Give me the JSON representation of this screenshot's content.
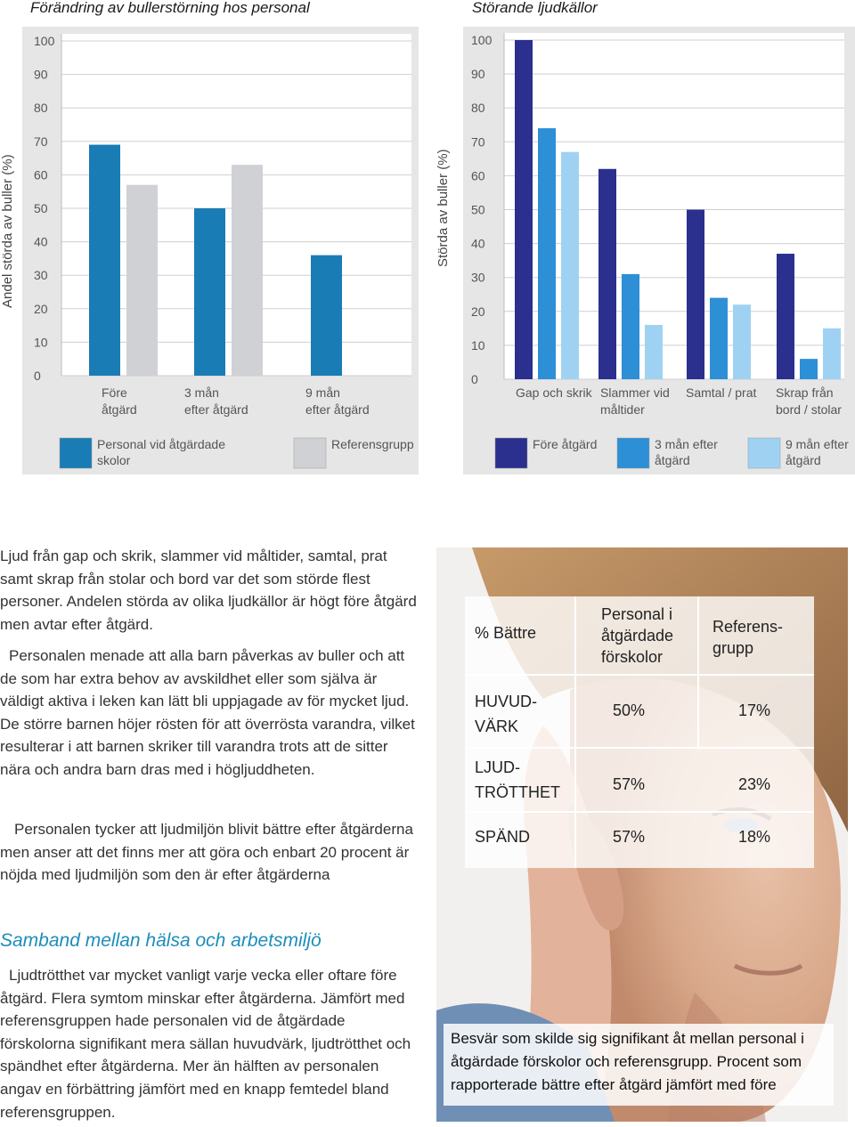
{
  "charts": {
    "left_title": "Förändring av bullerstörning hos personal",
    "right_title": "Störande ljudkällor",
    "left_ylabel": "Andel störda av buller (%)",
    "right_ylabel": "Störda av buller (%)"
  },
  "chart_data": [
    {
      "type": "bar",
      "title": "Förändring av bullerstörning hos personal",
      "ylabel": "Andel störda av buller (%)",
      "ylim": [
        0,
        100
      ],
      "yticks": [
        "0",
        "10",
        "20",
        "30",
        "40",
        "50",
        "60",
        "70",
        "80",
        "90",
        "100"
      ],
      "categories": [
        [
          "Före",
          "åtgärd"
        ],
        [
          "3 mån",
          "efter åtgärd"
        ],
        [
          "9 mån",
          "efter åtgärd"
        ]
      ],
      "series": [
        {
          "name": "Personal vid åtgärdade skolor",
          "legend_lines": [
            "Personal vid åtgärdade",
            "skolor"
          ],
          "color": "#1a7cb5",
          "values": [
            69,
            50,
            36
          ]
        },
        {
          "name": "Referensgrupp",
          "legend_lines": [
            "Referensgrupp"
          ],
          "color": "#cfd1d4",
          "values": [
            57,
            63,
            null
          ]
        }
      ],
      "grid": true,
      "legend_position": "bottom"
    },
    {
      "type": "bar",
      "title": "Störande ljudkällor",
      "ylabel": "Störda av buller (%)",
      "ylim": [
        0,
        100
      ],
      "yticks": [
        "0",
        "10",
        "20",
        "30",
        "40",
        "50",
        "60",
        "70",
        "80",
        "90",
        "100"
      ],
      "categories": [
        [
          "Gap och skrik"
        ],
        [
          "Slammer vid",
          "måltider"
        ],
        [
          "Samtal / prat"
        ],
        [
          "Skrap från",
          "bord / stolar"
        ]
      ],
      "series": [
        {
          "name": "Före åtgärd",
          "legend_lines": [
            "Före åtgärd"
          ],
          "color": "#2b2f8e",
          "values": [
            100,
            62,
            50,
            37
          ]
        },
        {
          "name": "3 mån efter åtgärd",
          "legend_lines": [
            "3 mån efter",
            "åtgärd"
          ],
          "color": "#2d8fd6",
          "values": [
            74,
            31,
            24,
            6
          ]
        },
        {
          "name": "9 mån efter åtgärd",
          "legend_lines": [
            "9 mån efter",
            "åtgärd"
          ],
          "color": "#9fd2f2",
          "values": [
            67,
            16,
            22,
            15
          ]
        }
      ],
      "grid": true,
      "legend_position": "bottom"
    }
  ],
  "body": {
    "p1": "Ljud från gap och skrik, slammer vid måltider, samtal, prat samt skrap från stolar och bord var det som störde flest personer. Andelen störda av olika ljudkällor är högt före åtgärd men avtar efter åtgärd.",
    "p2": "Personalen menade att alla barn påverkas av buller och att de som har extra behov av avskildhet eller som själva är väldigt aktiva i leken kan lätt bli uppjagade av för mycket ljud. De större barnen höjer rösten för att överrösta varandra, vilket resulterar i att barnen skriker till varandra trots att de sitter nära och andra barn dras med i högljuddheten.",
    "p3": "Personalen tycker att ljudmiljön blivit bättre efter åtgärderna men anser att det finns mer att göra och enbart 20 procent är nöjda med ljudmiljön som den är efter åtgärderna",
    "heading": "Samband mellan hälsa och arbetsmiljö",
    "p4": "Ljudtrötthet var mycket vanligt varje vecka eller oftare före åtgärd. Flera symtom minskar efter åtgärderna. Jämfört med referensgruppen hade personalen vid de åtgärdade förskolorna signifikant mera sällan huvudvärk, ljudtrötthet och spändhet efter åtgärderna. Mer än hälften av personalen angav en förbättring jämfört med en knapp femtedel bland referensgruppen."
  },
  "table": {
    "header": {
      "col0": "% Bättre",
      "col1": [
        "Personal i",
        "åtgärdade",
        "förskolor"
      ],
      "col2": [
        "Referens-",
        "grupp"
      ]
    },
    "rows": [
      {
        "label": [
          "HUVUD-",
          "VÄRK"
        ],
        "a": "50%",
        "b": "17%"
      },
      {
        "label": [
          "LJUD-",
          "TRÖTTHET"
        ],
        "a": "57%",
        "b": "23%"
      },
      {
        "label": [
          "SPÄND"
        ],
        "a": "57%",
        "b": "18%"
      }
    ]
  },
  "caption": "Besvär som skilde sig signifikant åt mellan personal i åtgärdade förskolor och referensgrupp. Procent som rapporterade bättre efter åtgärd jämfört med före"
}
